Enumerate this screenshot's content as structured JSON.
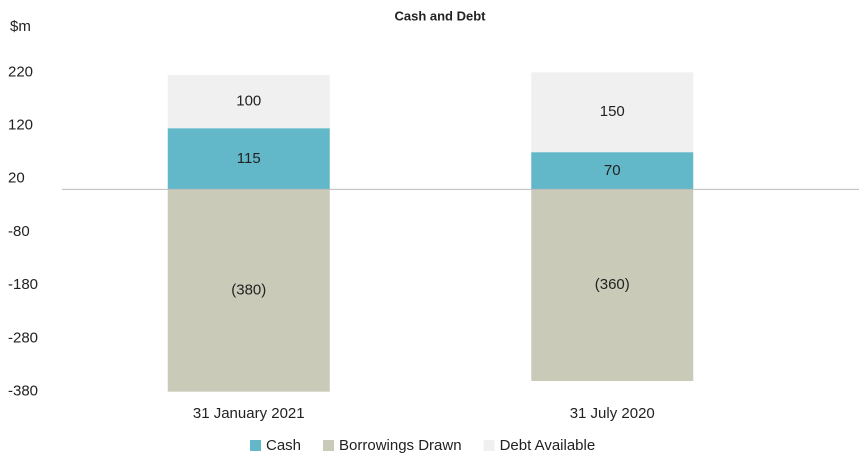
{
  "chart_data": {
    "type": "stacked_bar",
    "title": "Cash and Debt",
    "y_label": "$m",
    "categories": [
      "31 January 2021",
      "31 July 2020"
    ],
    "series": [
      {
        "name": "Cash",
        "color": "#62b8c8",
        "values": [
          115,
          70
        ]
      },
      {
        "name": "Borrowings Drawn",
        "color": "#c9cbb8",
        "values": [
          -380,
          -360
        ],
        "value_labels": [
          "(380)",
          "(360)"
        ]
      },
      {
        "name": "Debt Available",
        "color": "#f0f0f0",
        "values": [
          100,
          150
        ]
      }
    ],
    "ylim": [
      -390,
      230
    ],
    "yticks": [
      220,
      120,
      20,
      -80,
      -180,
      -280,
      -380
    ],
    "grid": false,
    "legend": "bottom"
  }
}
